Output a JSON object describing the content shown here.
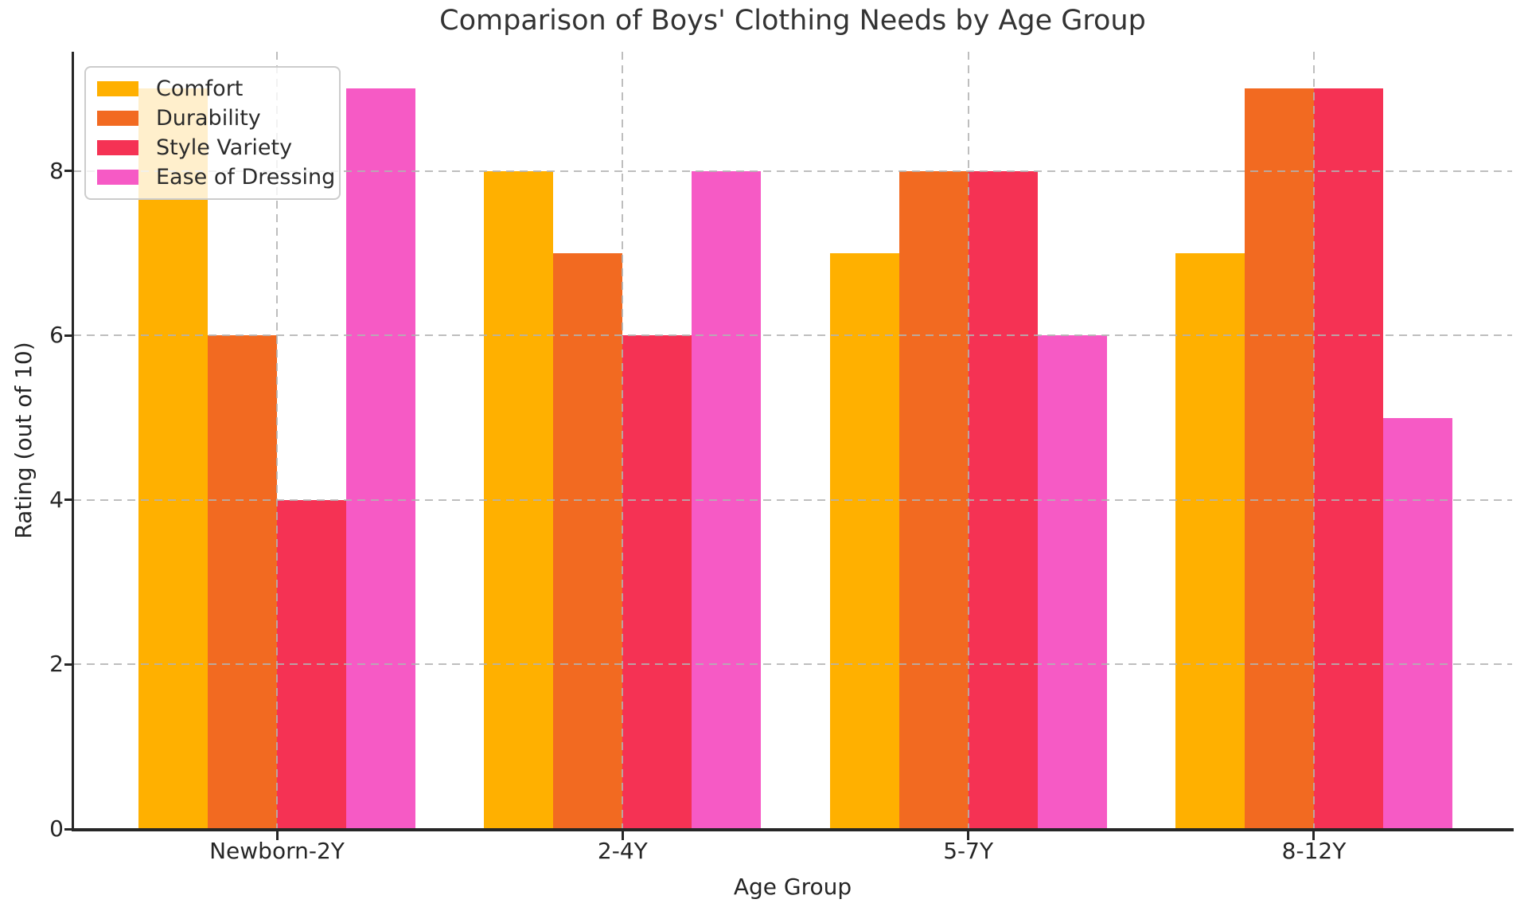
{
  "chart_data": {
    "type": "bar",
    "title": "Comparison of Boys' Clothing Needs by Age Group",
    "xlabel": "Age Group",
    "ylabel": "Rating (out of 10)",
    "categories": [
      "Newborn-2Y",
      "2-4Y",
      "5-7Y",
      "8-12Y"
    ],
    "series": [
      {
        "name": "Comfort",
        "color": "#FFB000",
        "values": [
          9,
          8,
          7,
          7
        ]
      },
      {
        "name": "Durability",
        "color": "#F26A21",
        "values": [
          6,
          7,
          8,
          9
        ]
      },
      {
        "name": "Style Variety",
        "color": "#F53254",
        "values": [
          4,
          6,
          8,
          9
        ]
      },
      {
        "name": "Ease of Dressing",
        "color": "#F65AC5",
        "values": [
          9,
          8,
          6,
          5
        ]
      }
    ],
    "yticks": [
      0,
      2,
      4,
      6,
      8
    ],
    "ylim": [
      0,
      9.45
    ],
    "grid": "dashed gray horizontal and vertical gridlines",
    "legend_position": "upper left",
    "axis_color": "#262626",
    "grid_color": "#B2B2B2",
    "title_color": "#333333",
    "background_color": "#FFFFFF"
  }
}
